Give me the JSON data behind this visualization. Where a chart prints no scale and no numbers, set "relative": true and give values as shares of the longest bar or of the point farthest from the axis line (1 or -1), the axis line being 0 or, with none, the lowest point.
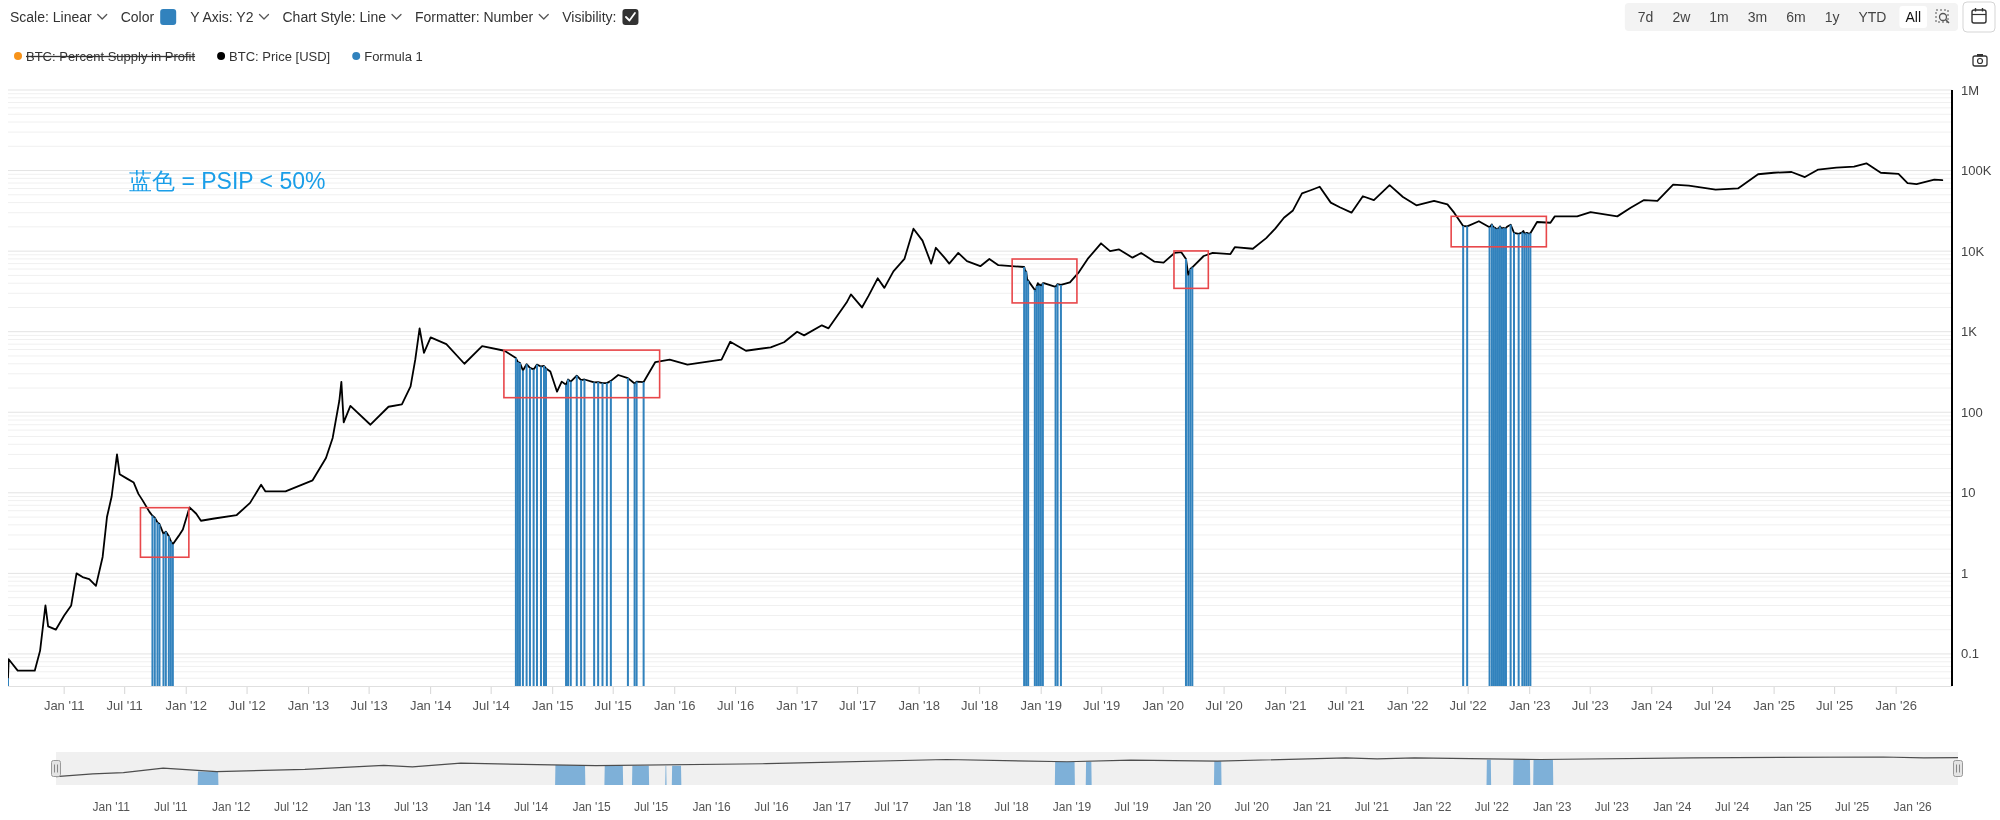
{
  "chart_data": [
    {
      "type": "line",
      "annotations": [
        "蓝色 = PSIP < 50%",
        "Scale: Linear",
        "Color",
        "Y Axis: Y2",
        "Chart Style: Line",
        "Formatter: Number",
        "Visibility:",
        "7d",
        "2w",
        "1m",
        "3m",
        "6m",
        "1y",
        "YTD",
        "All"
      ],
      "xlim": [
        "2010-07-17",
        "2026-06-17"
      ],
      "xticks": [
        {
          "value": "2011-01-01",
          "label": "Jan '11"
        },
        {
          "value": "2011-07-01",
          "label": "Jul '11"
        },
        {
          "value": "2012-01-01",
          "label": "Jan '12"
        },
        {
          "value": "2012-07-01",
          "label": "Jul '12"
        },
        {
          "value": "2013-01-01",
          "label": "Jan '13"
        },
        {
          "value": "2013-07-01",
          "label": "Jul '13"
        },
        {
          "value": "2014-01-01",
          "label": "Jan '14"
        },
        {
          "value": "2014-07-01",
          "label": "Jul '14"
        },
        {
          "value": "2015-01-01",
          "label": "Jan '15"
        },
        {
          "value": "2015-07-01",
          "label": "Jul '15"
        },
        {
          "value": "2016-01-01",
          "label": "Jan '16"
        },
        {
          "value": "2016-07-01",
          "label": "Jul '16"
        },
        {
          "value": "2017-01-01",
          "label": "Jan '17"
        },
        {
          "value": "2017-07-01",
          "label": "Jul '17"
        },
        {
          "value": "2018-01-01",
          "label": "Jan '18"
        },
        {
          "value": "2018-07-01",
          "label": "Jul '18"
        },
        {
          "value": "2019-01-01",
          "label": "Jan '19"
        },
        {
          "value": "2019-07-01",
          "label": "Jul '19"
        },
        {
          "value": "2020-01-01",
          "label": "Jan '20"
        },
        {
          "value": "2020-07-01",
          "label": "Jul '20"
        },
        {
          "value": "2021-01-01",
          "label": "Jan '21"
        },
        {
          "value": "2021-07-01",
          "label": "Jul '21"
        },
        {
          "value": "2022-01-01",
          "label": "Jan '22"
        },
        {
          "value": "2022-07-01",
          "label": "Jul '22"
        },
        {
          "value": "2023-01-01",
          "label": "Jan '23"
        },
        {
          "value": "2023-07-01",
          "label": "Jul '23"
        },
        {
          "value": "2024-01-01",
          "label": "Jan '24"
        },
        {
          "value": "2024-07-01",
          "label": "Jul '24"
        },
        {
          "value": "2025-01-01",
          "label": "Jan '25"
        },
        {
          "value": "2025-07-01",
          "label": "Jul '25"
        },
        {
          "value": "2026-01-01",
          "label": "Jan '26"
        }
      ],
      "ylim": [
        0.04,
        1000000
      ],
      "yticks": [
        0.1,
        1,
        10,
        100,
        {
          "value": 1000,
          "label": "1K"
        },
        {
          "value": 10000,
          "label": "10K"
        },
        {
          "value": 100000,
          "label": "100K"
        },
        {
          "value": 1000000,
          "label": "1M"
        }
      ],
      "log": "y",
      "grid": "y",
      "legend": "top left",
      "series": [
        {
          "name": "BTC: Percent Supply in Profit",
          "color": "#f7931a"
        },
        {
          "name": "BTC: Price [USD]",
          "color": "#000000",
          "x": [
            "2010-07-17",
            "2010-07-19",
            "2010-08-15",
            "2010-10-05",
            "2010-10-21",
            "2010-11-06",
            "2010-11-14",
            "2010-12-07",
            "2011-01-01",
            "2011-01-22",
            "2011-02-07",
            "2011-02-25",
            "2011-03-17",
            "2011-04-06",
            "2011-04-26",
            "2011-05-09",
            "2011-05-23",
            "2011-06-08",
            "2011-06-16",
            "2011-07-08",
            "2011-07-28",
            "2011-08-11",
            "2011-08-24",
            "2011-09-13",
            "2011-09-22",
            "2011-09-29",
            "2011-10-07",
            "2011-10-13",
            "2011-10-25",
            "2011-11-01",
            "2011-11-10",
            "2011-11-16",
            "2011-11-22",
            "2011-12-09",
            "2011-12-22",
            "2012-01-11",
            "2012-01-31",
            "2012-02-14",
            "2012-03-25",
            "2012-05-31",
            "2012-07-10",
            "2012-08-12",
            "2012-08-25",
            "2012-10-24",
            "2013-01-13",
            "2013-02-22",
            "2013-03-14",
            "2013-04-03",
            "2013-04-09",
            "2013-04-16",
            "2013-05-06",
            "2013-07-05",
            "2013-08-28",
            "2013-10-07",
            "2013-11-02",
            "2013-11-16",
            "2013-11-29",
            "2013-12-12",
            "2014-01-01",
            "2014-02-17",
            "2014-04-12",
            "2014-06-04",
            "2014-08-10",
            "2014-09-13",
            "2014-09-19",
            "2014-09-25",
            "2014-10-04",
            "2014-10-15",
            "2014-10-25",
            "2014-11-05",
            "2014-11-15",
            "2014-11-27",
            "2014-12-06",
            "2014-12-12",
            "2014-12-25",
            "2015-01-14",
            "2015-01-28",
            "2015-02-10",
            "2015-02-16",
            "2015-02-24",
            "2015-03-14",
            "2015-03-27",
            "2015-04-06",
            "2015-05-05",
            "2015-05-17",
            "2015-05-30",
            "2015-06-12",
            "2015-06-24",
            "2015-07-16",
            "2015-08-14",
            "2015-09-03",
            "2015-09-09",
            "2015-09-30",
            "2015-11-04",
            "2015-12-17",
            "2016-02-08",
            "2016-05-20",
            "2016-06-15",
            "2016-08-01",
            "2016-10-14",
            "2016-11-23",
            "2017-01-01",
            "2017-01-22",
            "2017-03-16",
            "2017-04-05",
            "2017-05-29",
            "2017-06-11",
            "2017-07-14",
            "2017-08-03",
            "2017-08-30",
            "2017-09-19",
            "2017-10-16",
            "2017-11-18",
            "2017-12-15",
            "2018-01-11",
            "2018-02-06",
            "2018-02-20",
            "2018-03-19",
            "2018-04-01",
            "2018-04-28",
            "2018-05-24",
            "2018-07-03",
            "2018-07-30",
            "2018-08-26",
            "2018-11-11",
            "2018-11-14",
            "2018-11-17",
            "2018-11-20",
            "2018-11-23",
            "2018-12-13",
            "2018-12-16",
            "2018-12-19",
            "2018-12-22",
            "2018-12-25",
            "2018-12-28",
            "2018-12-31",
            "2019-01-03",
            "2019-01-06",
            "2019-01-09",
            "2019-02-13",
            "2019-02-19",
            "2019-03-01",
            "2019-03-28",
            "2019-04-24",
            "2019-05-20",
            "2019-06-29",
            "2019-07-26",
            "2019-08-22",
            "2019-10-01",
            "2019-10-27",
            "2019-12-06",
            "2020-01-02",
            "2020-02-04",
            "2020-02-24",
            "2020-03-09",
            "2020-03-16",
            "2020-03-22",
            "2020-03-28",
            "2020-05-01",
            "2020-05-28",
            "2020-07-20",
            "2020-08-02",
            "2020-09-25",
            "2020-11-04",
            "2020-12-01",
            "2020-12-27",
            "2021-01-23",
            "2021-02-19",
            "2021-03-17",
            "2021-04-13",
            "2021-05-16",
            "2021-06-12",
            "2021-07-17",
            "2021-08-20",
            "2021-09-22",
            "2021-11-08",
            "2021-12-18",
            "2022-01-27",
            "2022-03-21",
            "2022-04-30",
            "2022-05-20",
            "2022-06-16",
            "2022-06-28",
            "2022-08-02",
            "2022-09-03",
            "2022-09-10",
            "2022-09-13",
            "2022-09-16",
            "2022-09-19",
            "2022-09-22",
            "2022-09-25",
            "2022-09-28",
            "2022-10-01",
            "2022-10-04",
            "2022-10-07",
            "2022-10-10",
            "2022-10-13",
            "2022-10-16",
            "2022-10-19",
            "2022-10-22",
            "2022-10-25",
            "2022-11-05",
            "2022-11-15",
            "2022-11-29",
            "2022-12-10",
            "2022-12-13",
            "2022-12-16",
            "2022-12-19",
            "2022-12-22",
            "2022-12-25",
            "2022-12-28",
            "2022-12-31",
            "2023-01-03",
            "2023-01-23",
            "2023-03-04",
            "2023-03-17",
            "2023-05-23",
            "2023-07-02",
            "2023-09-20",
            "2023-10-30",
            "2023-12-09",
            "2024-01-18",
            "2024-03-05",
            "2024-04-21",
            "2024-07-10",
            "2024-09-15",
            "2024-11-14",
            "2024-12-31",
            "2025-02-22",
            "2025-04-03",
            "2025-05-13",
            "2025-07-06",
            "2025-08-28",
            "2025-10-04",
            "2025-11-16",
            "2026-01-08",
            "2026-02-04",
            "2026-03-03",
            "2026-04-25",
            "2026-05-19"
          ],
          "values": [
            0.05,
            0.086,
            0.062,
            0.062,
            0.11,
            0.4,
            0.22,
            0.2,
            0.3,
            0.4,
            1,
            0.9,
            0.85,
            0.7,
            1.6,
            5,
            9,
            30,
            17,
            15,
            13.4,
            9.7,
            8,
            5.8,
            5.2,
            4.9,
            4.3,
            4.1,
            3.1,
            3.3,
            2.9,
            2.5,
            2.3,
            2.9,
            3.5,
            6.6,
            5.5,
            4.5,
            4.8,
            5.3,
            7.5,
            12.6,
            10.4,
            10.4,
            14.3,
            27,
            48,
            140,
            238,
            75,
            120,
            70,
            117,
            125,
            210,
            450,
            1100,
            546,
            850,
            700,
            400,
            660,
            580,
            470,
            420,
            410,
            330,
            395,
            355,
            340,
            390,
            370,
            375,
            350,
            320,
            180,
            240,
            220,
            255,
            240,
            285,
            250,
            255,
            235,
            237,
            230,
            230,
            245,
            290,
            265,
            227,
            240,
            237,
            420,
            450,
            390,
            450,
            750,
            580,
            640,
            740,
            1000,
            900,
            1200,
            1100,
            2300,
            2900,
            2000,
            2800,
            4600,
            3500,
            5600,
            8000,
            19000,
            13500,
            7000,
            11000,
            8200,
            7000,
            9500,
            7500,
            6500,
            8000,
            6700,
            6350,
            5700,
            5600,
            4500,
            4300,
            3300,
            3200,
            3700,
            4000,
            3750,
            3850,
            3700,
            3800,
            4000,
            4000,
            3600,
            3900,
            3800,
            4100,
            5500,
            8000,
            12500,
            10000,
            10500,
            8300,
            9500,
            7400,
            7200,
            9500,
            9700,
            8000,
            5000,
            6000,
            6300,
            8700,
            9500,
            9200,
            11200,
            10700,
            14500,
            19000,
            26000,
            32000,
            52000,
            57000,
            63000,
            40000,
            35000,
            30000,
            48000,
            43000,
            66000,
            47000,
            37000,
            42000,
            38000,
            30000,
            20500,
            20300,
            23500,
            19800,
            21500,
            20200,
            19700,
            19500,
            19000,
            18800,
            19100,
            19300,
            20300,
            19500,
            19100,
            19400,
            19300,
            19100,
            19200,
            20100,
            21300,
            16900,
            16400,
            17100,
            17800,
            16600,
            16400,
            16800,
            16800,
            16500,
            16500,
            16700,
            23000,
            22500,
            27000,
            27000,
            30500,
            27000,
            34500,
            43000,
            42000,
            67000,
            65000,
            58000,
            60000,
            90000,
            94000,
            96000,
            83000,
            103000,
            109000,
            112000,
            123000,
            94000,
            91000,
            70000,
            68000,
            77000,
            76000
          ]
        },
        {
          "name": "Formula 1",
          "type": "bar",
          "color": "#3182bd",
          "x": [
            "2010-07-17",
            "2011-09-22",
            "2011-09-29",
            "2011-10-07",
            "2011-10-13",
            "2011-10-25",
            "2011-11-01",
            "2011-11-10",
            "2011-11-16",
            "2011-11-22",
            "2014-09-13",
            "2014-09-19",
            "2014-09-25",
            "2014-10-04",
            "2014-10-15",
            "2014-10-25",
            "2014-11-05",
            "2014-11-15",
            "2014-11-27",
            "2014-12-06",
            "2014-12-12",
            "2015-02-10",
            "2015-02-16",
            "2015-02-24",
            "2015-03-14",
            "2015-03-27",
            "2015-04-06",
            "2015-05-05",
            "2015-05-17",
            "2015-05-30",
            "2015-06-12",
            "2015-06-24",
            "2015-08-14",
            "2015-09-03",
            "2015-09-09",
            "2015-09-30",
            "2018-11-11",
            "2018-11-17",
            "2018-11-23",
            "2018-12-13",
            "2018-12-19",
            "2018-12-25",
            "2018-12-31",
            "2019-01-06",
            "2019-02-13",
            "2019-02-19",
            "2019-03-01",
            "2020-03-09",
            "2020-03-16",
            "2020-03-22",
            "2020-03-28",
            "2022-06-16",
            "2022-06-28",
            "2022-09-03",
            "2022-09-10",
            "2022-09-16",
            "2022-09-22",
            "2022-09-28",
            "2022-10-04",
            "2022-10-10",
            "2022-10-16",
            "2022-10-22",
            "2022-11-05",
            "2022-11-15",
            "2022-11-29",
            "2022-12-10",
            "2022-12-16",
            "2022-12-22",
            "2022-12-28",
            "2023-01-03"
          ],
          "values": [
            0.05,
            5.2,
            4.9,
            4.3,
            4.1,
            3.1,
            3.3,
            2.9,
            2.5,
            2.3,
            470,
            420,
            410,
            330,
            395,
            355,
            340,
            390,
            370,
            375,
            350,
            220,
            255,
            240,
            285,
            250,
            255,
            235,
            237,
            230,
            230,
            245,
            265,
            227,
            240,
            237,
            6350,
            5600,
            4300,
            3300,
            3700,
            3750,
            3700,
            4000,
            3600,
            3900,
            3800,
            8000,
            5000,
            6000,
            6300,
            20500,
            20300,
            19800,
            21500,
            19700,
            19000,
            19100,
            20300,
            19100,
            19300,
            19200,
            21300,
            16900,
            16400,
            17100,
            16600,
            16800,
            16500,
            16700
          ]
        }
      ]
    },
    {
      "type": "line",
      "relative": true,
      "tick_labels": "x",
      "xlim": [
        "2010-07-17",
        "2026-05-19"
      ],
      "xticks": [
        {
          "value": "2011-01-01",
          "label": "Jan '11"
        },
        {
          "value": "2011-07-01",
          "label": "Jul '11"
        },
        {
          "value": "2012-01-01",
          "label": "Jan '12"
        },
        {
          "value": "2012-07-01",
          "label": "Jul '12"
        },
        {
          "value": "2013-01-01",
          "label": "Jan '13"
        },
        {
          "value": "2013-07-01",
          "label": "Jul '13"
        },
        {
          "value": "2014-01-01",
          "label": "Jan '14"
        },
        {
          "value": "2014-07-01",
          "label": "Jul '14"
        },
        {
          "value": "2015-01-01",
          "label": "Jan '15"
        },
        {
          "value": "2015-07-01",
          "label": "Jul '15"
        },
        {
          "value": "2016-01-01",
          "label": "Jan '16"
        },
        {
          "value": "2016-07-01",
          "label": "Jul '16"
        },
        {
          "value": "2017-01-01",
          "label": "Jan '17"
        },
        {
          "value": "2017-07-01",
          "label": "Jul '17"
        },
        {
          "value": "2018-01-01",
          "label": "Jan '18"
        },
        {
          "value": "2018-07-01",
          "label": "Jul '18"
        },
        {
          "value": "2019-01-01",
          "label": "Jan '19"
        },
        {
          "value": "2019-07-01",
          "label": "Jul '19"
        },
        {
          "value": "2020-01-01",
          "label": "Jan '20"
        },
        {
          "value": "2020-07-01",
          "label": "Jul '20"
        },
        {
          "value": "2021-01-01",
          "label": "Jan '21"
        },
        {
          "value": "2021-07-01",
          "label": "Jul '21"
        },
        {
          "value": "2022-01-01",
          "label": "Jan '22"
        },
        {
          "value": "2022-07-01",
          "label": "Jul '22"
        },
        {
          "value": "2023-01-01",
          "label": "Jan '23"
        },
        {
          "value": "2023-07-01",
          "label": "Jul '23"
        },
        {
          "value": "2024-01-01",
          "label": "Jan '24"
        },
        {
          "value": "2024-07-01",
          "label": "Jul '24"
        },
        {
          "value": "2025-01-01",
          "label": "Jan '25"
        },
        {
          "value": "2025-07-01",
          "label": "Jul '25"
        },
        {
          "value": "2026-01-01",
          "label": "Jan '26"
        }
      ],
      "series": [
        {
          "type": "area",
          "color": "#7eb0d8",
          "x": [
            "2011-09-21",
            "2011-09-22",
            "2011-11-22",
            "2011-11-23",
            "2014-09-12",
            "2014-09-13",
            "2014-12-12",
            "2014-12-13",
            "2015-02-09",
            "2015-02-10",
            "2015-04-06",
            "2015-04-07",
            "2015-05-04",
            "2015-05-05",
            "2015-06-24",
            "2015-06-25",
            "2015-08-13",
            "2015-08-14",
            "2015-08-16",
            "2015-08-17",
            "2015-09-02",
            "2015-09-03",
            "2015-09-30",
            "2015-10-01",
            "2018-11-10",
            "2018-11-11",
            "2019-01-09",
            "2019-01-10",
            "2019-02-12",
            "2019-02-13",
            "2019-03-01",
            "2019-03-02",
            "2020-03-08",
            "2020-03-09",
            "2020-03-30",
            "2020-03-31",
            "2022-06-15",
            "2022-06-16",
            "2022-06-28",
            "2022-06-29",
            "2022-09-04",
            "2022-09-05",
            "2022-10-25",
            "2022-10-26",
            "2022-11-04",
            "2022-11-05",
            "2023-01-03",
            "2023-01-04"
          ],
          "values": [
            0,
            0.48,
            0.47,
            0,
            0,
            0.71,
            0.7,
            0,
            0,
            0.69,
            0.69,
            0,
            0,
            0.69,
            0.69,
            0,
            0,
            0.69,
            0.69,
            0,
            0,
            0.69,
            0.69,
            0,
            0,
            0.84,
            0.83,
            0,
            0,
            0.83,
            0.83,
            0,
            0,
            0.85,
            0.85,
            0,
            0,
            0.9,
            0.9,
            0,
            0,
            0.9,
            0.9,
            0,
            0,
            0.9,
            0.9,
            0
          ]
        },
        {
          "color": "#4d4d4d",
          "x": [
            "2010-07-17",
            "2010-11-06",
            "2011-02-07",
            "2011-06-08",
            "2011-11-18",
            "2012-08-12",
            "2013-04-09",
            "2013-07-05",
            "2013-11-29",
            "2015-01-14",
            "2016-06-15",
            "2017-12-15",
            "2018-12-17",
            "2019-06-29",
            "2020-03-18",
            "2021-04-13",
            "2021-07-17",
            "2021-11-08",
            "2022-11-26",
            "2024-03-05",
            "2025-10-04",
            "2026-02-04",
            "2026-05-19"
          ],
          "values": [
            0.3,
            0.4,
            0.44,
            0.6,
            0.48,
            0.56,
            0.7,
            0.65,
            0.78,
            0.69,
            0.76,
            0.91,
            0.83,
            0.89,
            0.85,
            0.97,
            0.93,
            0.97,
            0.91,
            0.97,
            1,
            0.97,
            0.98
          ]
        }
      ]
    }
  ]
}
